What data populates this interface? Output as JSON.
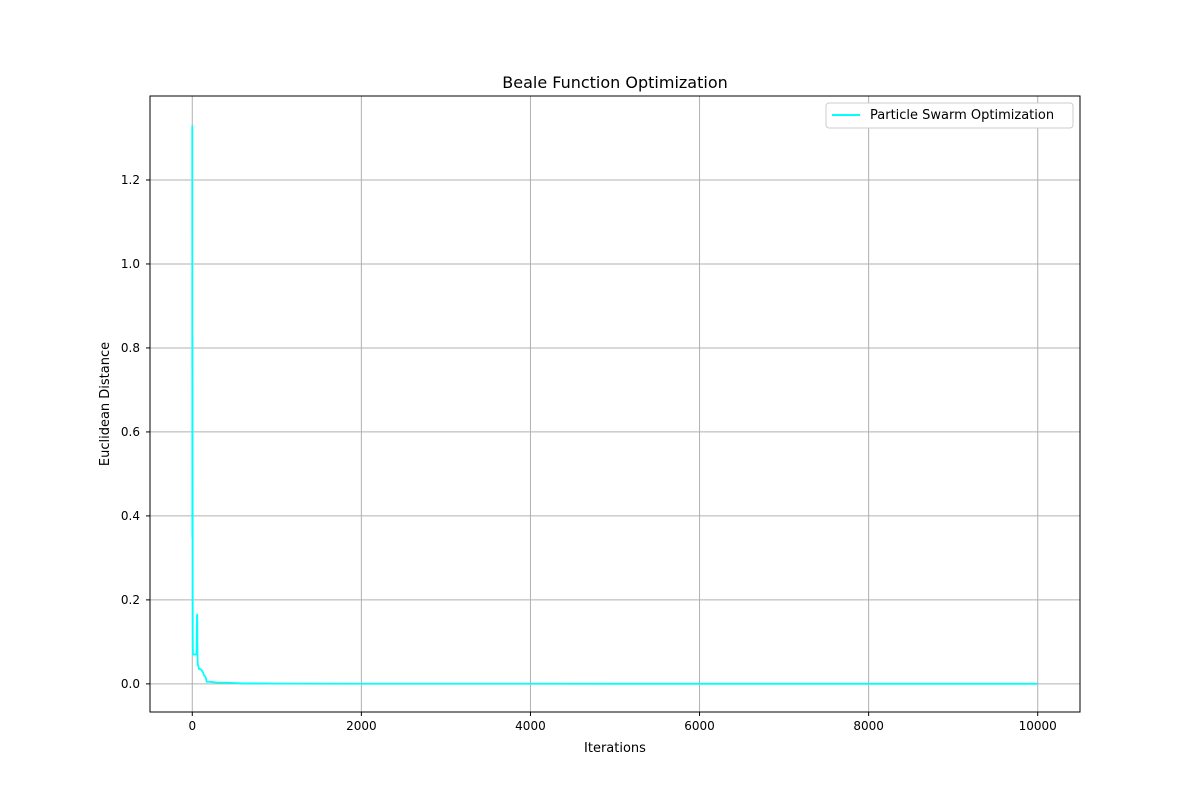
{
  "chart_data": {
    "type": "line",
    "title": "Beale Function Optimization",
    "xlabel": "Iterations",
    "ylabel": "Euclidean Distance",
    "xlim": [
      -500,
      10500
    ],
    "ylim": [
      -0.067,
      1.4
    ],
    "xticks": [
      0,
      2000,
      4000,
      6000,
      8000,
      10000
    ],
    "xtick_labels": [
      "0",
      "2000",
      "4000",
      "6000",
      "8000",
      "10000"
    ],
    "yticks": [
      0.0,
      0.2,
      0.4,
      0.6,
      0.8,
      1.0,
      1.2
    ],
    "ytick_labels": [
      "0.0",
      "0.2",
      "0.4",
      "0.6",
      "0.8",
      "1.0",
      "1.2"
    ],
    "grid": true,
    "legend_position": "upper-right",
    "series": [
      {
        "name": "Particle Swarm Optimization",
        "color": "#00ffff",
        "x": [
          0,
          1,
          2,
          3,
          4,
          5,
          6,
          7,
          8,
          10,
          15,
          20,
          30,
          40,
          50,
          55,
          58,
          60,
          62,
          65,
          70,
          75,
          80,
          100,
          120,
          140,
          160,
          170,
          180,
          200,
          250,
          300,
          400,
          500,
          600,
          800,
          1000,
          2000,
          3000,
          4000,
          5000,
          6000,
          7000,
          8000,
          9000,
          10000
        ],
        "y": [
          1.33,
          0.35,
          0.83,
          0.55,
          0.45,
          0.2,
          0.1,
          0.08,
          0.07,
          0.07,
          0.07,
          0.07,
          0.07,
          0.07,
          0.07,
          0.16,
          0.165,
          0.12,
          0.07,
          0.045,
          0.045,
          0.04,
          0.035,
          0.035,
          0.03,
          0.02,
          0.015,
          0.005,
          0.005,
          0.005,
          0.004,
          0.003,
          0.003,
          0.002,
          0.001,
          0.001,
          0.0005,
          0.0003,
          0.0002,
          0.0002,
          0.0001,
          0.0001,
          0.0001,
          0.0001,
          0.0001,
          0.0001
        ]
      }
    ]
  }
}
